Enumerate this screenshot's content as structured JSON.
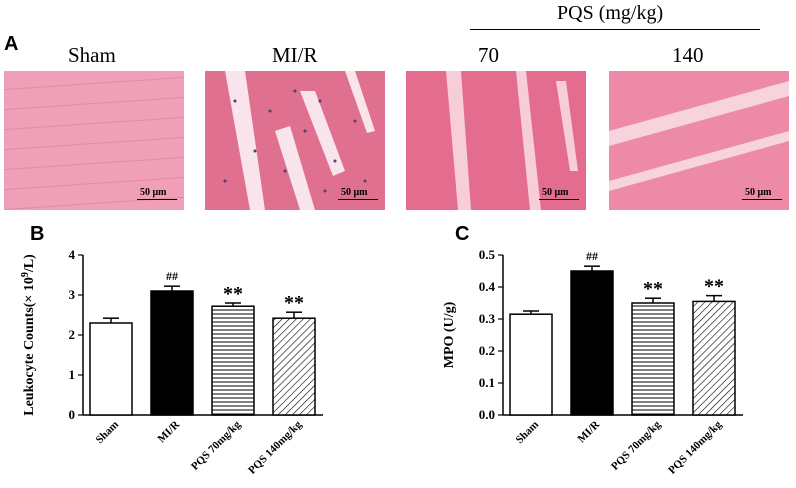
{
  "panelA": {
    "letter": "A",
    "group_title": "PQS (mg/kg)",
    "images": [
      {
        "label": "Sham",
        "scale": "50 μm"
      },
      {
        "label": "MI/R",
        "scale": "50 μm"
      },
      {
        "label": "70",
        "scale": "50 μm"
      },
      {
        "label": "140",
        "scale": "50 μm"
      }
    ]
  },
  "panelB": {
    "letter": "B"
  },
  "panelC": {
    "letter": "C"
  },
  "colors": {
    "tissue": "#e8799a",
    "tissue_light": "#f3b6c7",
    "nuclei": "#4b3f7a",
    "bar_black": "#000000"
  },
  "chart_data": [
    {
      "type": "bar",
      "panel": "B",
      "categories": [
        "Sham",
        "MI/R",
        "PQS 70mg/kg",
        "PQS 140mg/kg"
      ],
      "values": [
        2.3,
        3.1,
        2.72,
        2.42
      ],
      "errors": [
        0.12,
        0.12,
        0.08,
        0.15
      ],
      "fills": [
        "white",
        "black",
        "horizontal-lines",
        "diagonal-lines"
      ],
      "annotations": [
        "",
        "##",
        "**",
        "**"
      ],
      "ylabel_prefix": "Leukocyte Counts(× 10",
      "ylabel_sup": "9",
      "ylabel_suffix": "/L)",
      "ylim": [
        0,
        4
      ],
      "yticks": [
        "0",
        "1",
        "2",
        "3",
        "4"
      ]
    },
    {
      "type": "bar",
      "panel": "C",
      "categories": [
        "Sham",
        "MI/R",
        "PQS 70mg/kg",
        "PQS 140mg/kg"
      ],
      "values": [
        0.315,
        0.45,
        0.35,
        0.355
      ],
      "errors": [
        0.01,
        0.015,
        0.015,
        0.018
      ],
      "fills": [
        "white",
        "black",
        "horizontal-lines",
        "diagonal-lines"
      ],
      "annotations": [
        "",
        "##",
        "**",
        "**"
      ],
      "ylabel": "MPO (U/g)",
      "ylim": [
        0,
        0.5
      ],
      "yticks": [
        "0.0",
        "0.1",
        "0.2",
        "0.3",
        "0.4",
        "0.5"
      ]
    }
  ]
}
